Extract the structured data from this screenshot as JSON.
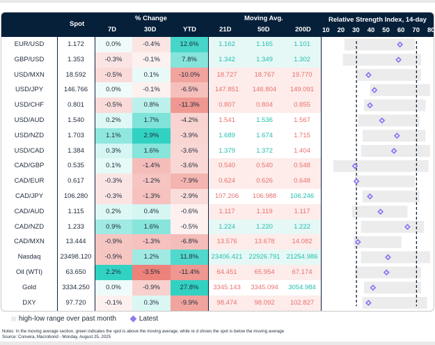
{
  "header": {
    "spot": "Spot",
    "pct_change": "% Change",
    "pct_cols": [
      "7D",
      "30D",
      "YTD"
    ],
    "moving_avg": "Moving Avg.",
    "ma_cols": [
      "21D",
      "50D",
      "200D"
    ],
    "rsi_title": "Relative Strength Index, 14-day",
    "rsi_ticks": [
      "10",
      "20",
      "30",
      "40",
      "50",
      "60",
      "70",
      "80"
    ]
  },
  "colors": {
    "header_bg": "#06203a",
    "ma_above": "#20bfae",
    "ma_below": "#e8706c",
    "marker": "#8f7bf0",
    "range_bar": "#ececec"
  },
  "legend": {
    "range_label": "high-low range over past month",
    "latest_label": "Latest"
  },
  "notes": {
    "line1": "Notes: In the moving average section, green indicates the spot is above the moving average, while re  d shows the spot is below  the moving average",
    "line2": "Source: Convera, Macrobond - Monday, August 25, 2025"
  },
  "chart_data": {
    "type": "table",
    "title": "Relative Strength Index, 14-day",
    "rsi_axis": {
      "range": [
        10,
        80
      ],
      "ticks": [
        10,
        20,
        30,
        40,
        50,
        60,
        70,
        80
      ],
      "reference_lines": [
        30,
        70
      ]
    },
    "rows": [
      {
        "name": "EUR/USD",
        "spot": "1.172",
        "d7": "0.0%",
        "d30": "-0.4%",
        "ytd": "12.6%",
        "ma21": "1.162",
        "ma50": "1.165",
        "ma200": "1.101",
        "ma_up": [
          true,
          true,
          true
        ],
        "rsi": 59,
        "rsi_low": 22,
        "rsi_high": 69
      },
      {
        "name": "GBP/USD",
        "spot": "1.353",
        "d7": "-0.3%",
        "d30": "-0.1%",
        "ytd": "7.8%",
        "ma21": "1.342",
        "ma50": "1.349",
        "ma200": "1.302",
        "ma_up": [
          true,
          true,
          true
        ],
        "rsi": 58,
        "rsi_low": 21,
        "rsi_high": 73
      },
      {
        "name": "USD/MXN",
        "spot": "18.592",
        "d7": "-0.5%",
        "d30": "0.1%",
        "ytd": "-10.0%",
        "ma21": "18.727",
        "ma50": "18.767",
        "ma200": "19.770",
        "ma_up": [
          false,
          false,
          false
        ],
        "rsi": 38,
        "rsi_low": 30,
        "rsi_high": 73
      },
      {
        "name": "USD/JPY",
        "spot": "146.766",
        "d7": "0.0%",
        "d30": "-0.1%",
        "ytd": "-6.5%",
        "ma21": "147.851",
        "ma50": "146.804",
        "ma200": "149.091",
        "ma_up": [
          false,
          false,
          false
        ],
        "rsi": 42,
        "rsi_low": 39,
        "rsi_high": 79
      },
      {
        "name": "USD/CHF",
        "spot": "0.801",
        "d7": "-0.5%",
        "d30": "0.8%",
        "ytd": "-11.3%",
        "ma21": "0.807",
        "ma50": "0.804",
        "ma200": "0.855",
        "ma_up": [
          false,
          false,
          false
        ],
        "rsi": 39,
        "rsi_low": 35,
        "rsi_high": 76
      },
      {
        "name": "USD/AUD",
        "spot": "1.540",
        "d7": "0.2%",
        "d30": "1.7%",
        "ytd": "-4.2%",
        "ma21": "1.541",
        "ma50": "1.536",
        "ma200": "1.567",
        "ma_up": [
          false,
          true,
          false
        ],
        "rsi": 47,
        "rsi_low": 31,
        "rsi_high": 72
      },
      {
        "name": "USD/NZD",
        "spot": "1.703",
        "d7": "1.1%",
        "d30": "2.9%",
        "ytd": "-3.9%",
        "ma21": "1.689",
        "ma50": "1.674",
        "ma200": "1.715",
        "ma_up": [
          true,
          true,
          false
        ],
        "rsi": 57,
        "rsi_low": 34,
        "rsi_high": 76
      },
      {
        "name": "USD/CAD",
        "spot": "1.384",
        "d7": "0.3%",
        "d30": "1.6%",
        "ytd": "-3.6%",
        "ma21": "1.379",
        "ma50": "1.372",
        "ma200": "1.404",
        "ma_up": [
          true,
          true,
          false
        ],
        "rsi": 55,
        "rsi_low": 33,
        "rsi_high": 79
      },
      {
        "name": "CAD/GBP",
        "spot": "0.535",
        "d7": "0.1%",
        "d30": "-1.4%",
        "ytd": "-3.6%",
        "ma21": "0.540",
        "ma50": "0.540",
        "ma200": "0.548",
        "ma_up": [
          false,
          false,
          false
        ],
        "rsi": 29,
        "rsi_low": 14,
        "rsi_high": 78
      },
      {
        "name": "CAD/EUR",
        "spot": "0.617",
        "d7": "-0.3%",
        "d30": "-1.2%",
        "ytd": "-7.9%",
        "ma21": "0.624",
        "ma50": "0.626",
        "ma200": "0.648",
        "ma_up": [
          false,
          false,
          false
        ],
        "rsi": 30,
        "rsi_low": 29,
        "rsi_high": 69
      },
      {
        "name": "CAD/JPY",
        "spot": "106.280",
        "d7": "-0.3%",
        "d30": "-1.3%",
        "ytd": "-2.9%",
        "ma21": "107.206",
        "ma50": "106.988",
        "ma200": "106.246",
        "ma_up": [
          false,
          false,
          true
        ],
        "rsi": 39,
        "rsi_low": 34,
        "rsi_high": 72
      },
      {
        "name": "CAD/AUD",
        "spot": "1.115",
        "d7": "0.2%",
        "d30": "0.4%",
        "ytd": "-0.6%",
        "ma21": "1.117",
        "ma50": "1.119",
        "ma200": "1.117",
        "ma_up": [
          false,
          false,
          false
        ],
        "rsi": 46,
        "rsi_low": 27,
        "rsi_high": 64
      },
      {
        "name": "CAD/NZD",
        "spot": "1.233",
        "d7": "0.9%",
        "d30": "1.6%",
        "ytd": "-0.5%",
        "ma21": "1.224",
        "ma50": "1.220",
        "ma200": "1.222",
        "ma_up": [
          true,
          true,
          true
        ],
        "rsi": 64,
        "rsi_low": 33,
        "rsi_high": 75
      },
      {
        "name": "CAD/MXN",
        "spot": "13.444",
        "d7": "-0.9%",
        "d30": "-1.3%",
        "ytd": "-6.8%",
        "ma21": "13.576",
        "ma50": "13.678",
        "ma200": "14.082",
        "ma_up": [
          false,
          false,
          false
        ],
        "rsi": 31,
        "rsi_low": 28,
        "rsi_high": 60
      },
      {
        "name": "Nasdaq",
        "spot": "23498.120",
        "d7": "-0.9%",
        "d30": "1.2%",
        "ytd": "11.8%",
        "ma21": "23406.421",
        "ma50": "22926.791",
        "ma200": "21254.986",
        "ma_up": [
          true,
          true,
          true
        ],
        "rsi": 51,
        "rsi_low": 33,
        "rsi_high": 79
      },
      {
        "name": "Oil (WTI)",
        "spot": "63.650",
        "d7": "2.2%",
        "d30": "-3.5%",
        "ytd": "-11.4%",
        "ma21": "64.451",
        "ma50": "65.954",
        "ma200": "67.174",
        "ma_up": [
          false,
          false,
          false
        ],
        "rsi": 50,
        "rsi_low": 29,
        "rsi_high": 73
      },
      {
        "name": "Gold",
        "spot": "3334.250",
        "d7": "0.0%",
        "d30": "-0.9%",
        "ytd": "27.8%",
        "ma21": "3345.143",
        "ma50": "3345.094",
        "ma200": "3054.984",
        "ma_up": [
          false,
          false,
          true
        ],
        "rsi": 41,
        "rsi_low": 35,
        "rsi_high": 73
      },
      {
        "name": "DXY",
        "spot": "97.720",
        "d7": "-0.1%",
        "d30": "0.3%",
        "ytd": "-9.9%",
        "ma21": "98.474",
        "ma50": "98.092",
        "ma200": "102.827",
        "ma_up": [
          false,
          false,
          false
        ],
        "rsi": 38,
        "rsi_low": 34,
        "rsi_high": 77
      }
    ]
  }
}
